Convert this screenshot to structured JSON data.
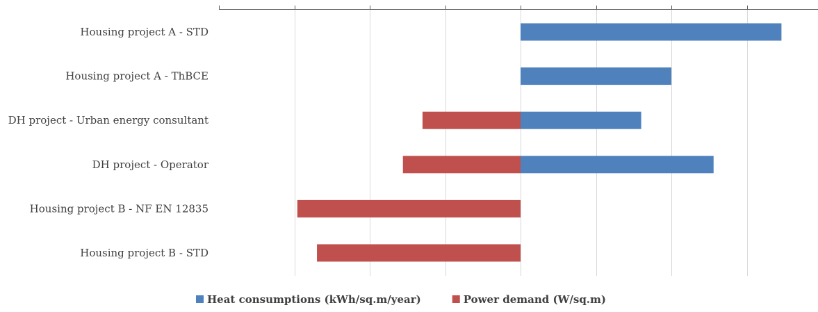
{
  "chart_data": {
    "type": "bar",
    "orientation": "horizontal",
    "categories": [
      "Housing project A - STD",
      "Housing project A - ThBCE",
      "DH project - Urban energy consultant",
      "DH project - Operator",
      "Housing project B - NF EN 12835",
      "Housing project B - STD"
    ],
    "series": [
      {
        "name": "Heat consumptions (kWh/sq.m/year)",
        "color": "#4F81BD",
        "values": [
          173,
          100,
          80,
          128,
          null,
          null
        ]
      },
      {
        "name": "Power demand (W/sq.m)",
        "color": "#C0504D",
        "values": [
          null,
          null,
          -65,
          -78,
          -148,
          -135
        ]
      }
    ],
    "xlim": [
      -200,
      200
    ],
    "x_tick_step": 50,
    "tick_labels_shown": false,
    "grid": true,
    "legend_position": "bottom"
  }
}
